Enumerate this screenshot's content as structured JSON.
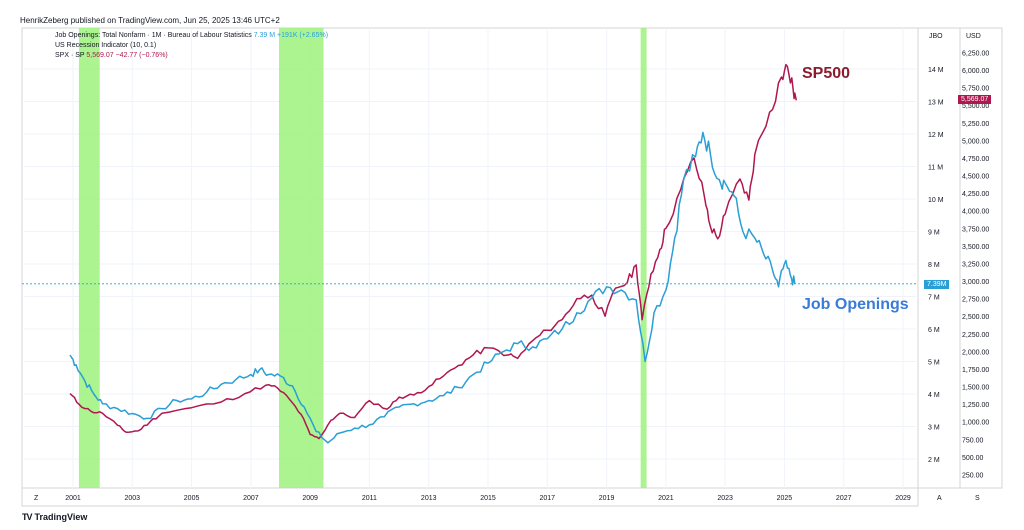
{
  "header": {
    "published": "HenrikZeberg published on TradingView.com, Jun 25, 2025 13:46 UTC+2"
  },
  "legend": {
    "series1_name": "Job Openings: Total Nonfarm · 1M · Bureau of Labour Statistics",
    "series1_value": "7.39 M  +191K (+2.65%)",
    "series2_name": "US Recession Indicator (10, 0.1)",
    "series3_name": "SPX · SP",
    "series3_value": "5,569.07  −42.77 (−0.76%)"
  },
  "annotations": {
    "sp500": "SP500",
    "job_openings": "Job Openings"
  },
  "axes": {
    "left_scale_title": "JBO",
    "right_scale_title": "USD",
    "jbo_badge": "7.39M",
    "spx_badge": "5,569.07",
    "bottom_left": "Z",
    "bottom_mid": "A",
    "bottom_right": "S"
  },
  "footer": {
    "logo": "TV",
    "brand": "TradingView"
  },
  "chart_data": {
    "type": "line",
    "x_ticks": [
      "2001",
      "2003",
      "2005",
      "2007",
      "2009",
      "2011",
      "2013",
      "2015",
      "2017",
      "2019",
      "2021",
      "2023",
      "2025",
      "2027",
      "2029"
    ],
    "jbo_ticks": [
      "2 M",
      "3 M",
      "4 M",
      "5 M",
      "6 M",
      "7 M",
      "8 M",
      "9 M",
      "10 M",
      "11 M",
      "12 M",
      "13 M",
      "14 M"
    ],
    "usd_ticks": [
      "250.00",
      "500.00",
      "750.00",
      "1,000.00",
      "1,250.00",
      "1,500.00",
      "1,750.00",
      "2,000.00",
      "2,250.00",
      "2,500.00",
      "2,750.00",
      "3,000.00",
      "3,250.00",
      "3,500.00",
      "3,750.00",
      "4,000.00",
      "4,250.00",
      "4,500.00",
      "4,750.00",
      "5,000.00",
      "5,250.00",
      "5,500.00",
      "5,750.00",
      "6,000.00",
      "6,250.00"
    ],
    "recessions": [
      [
        2001.2,
        2001.9
      ],
      [
        2007.95,
        2009.45
      ],
      [
        2020.15,
        2020.35
      ]
    ],
    "series": [
      {
        "name": "Job Openings",
        "color": "#2a9fd6",
        "points": [
          [
            2000.9,
            5.2
          ],
          [
            2001.1,
            4.9
          ],
          [
            2001.4,
            4.4
          ],
          [
            2001.7,
            4.0
          ],
          [
            2002.0,
            3.7
          ],
          [
            2002.5,
            3.55
          ],
          [
            2003.0,
            3.4
          ],
          [
            2003.5,
            3.25
          ],
          [
            2004.0,
            3.55
          ],
          [
            2004.5,
            3.8
          ],
          [
            2005.0,
            3.85
          ],
          [
            2005.5,
            4.05
          ],
          [
            2006.0,
            4.3
          ],
          [
            2006.5,
            4.45
          ],
          [
            2007.0,
            4.6
          ],
          [
            2007.3,
            4.75
          ],
          [
            2007.6,
            4.6
          ],
          [
            2008.0,
            4.55
          ],
          [
            2008.4,
            4.25
          ],
          [
            2008.8,
            3.6
          ],
          [
            2009.2,
            2.85
          ],
          [
            2009.6,
            2.5
          ],
          [
            2010.0,
            2.8
          ],
          [
            2010.5,
            2.95
          ],
          [
            2011.0,
            3.05
          ],
          [
            2011.5,
            3.3
          ],
          [
            2012.0,
            3.6
          ],
          [
            2012.5,
            3.7
          ],
          [
            2013.0,
            3.8
          ],
          [
            2013.5,
            3.95
          ],
          [
            2014.0,
            4.2
          ],
          [
            2014.5,
            4.6
          ],
          [
            2015.0,
            4.95
          ],
          [
            2015.5,
            5.3
          ],
          [
            2016.0,
            5.55
          ],
          [
            2016.5,
            5.45
          ],
          [
            2017.0,
            5.7
          ],
          [
            2017.5,
            6.0
          ],
          [
            2018.0,
            6.5
          ],
          [
            2018.5,
            6.95
          ],
          [
            2019.0,
            7.3
          ],
          [
            2019.5,
            7.2
          ],
          [
            2020.0,
            6.9
          ],
          [
            2020.3,
            5.0
          ],
          [
            2020.6,
            6.5
          ],
          [
            2021.0,
            7.2
          ],
          [
            2021.3,
            8.8
          ],
          [
            2021.6,
            10.6
          ],
          [
            2022.0,
            11.3
          ],
          [
            2022.25,
            12.05
          ],
          [
            2022.5,
            11.4
          ],
          [
            2022.8,
            10.6
          ],
          [
            2023.0,
            10.5
          ],
          [
            2023.3,
            10.1
          ],
          [
            2023.6,
            9.0
          ],
          [
            2024.0,
            8.8
          ],
          [
            2024.3,
            8.3
          ],
          [
            2024.6,
            7.8
          ],
          [
            2024.8,
            7.3
          ],
          [
            2025.0,
            8.0
          ],
          [
            2025.2,
            7.65
          ],
          [
            2025.35,
            7.39
          ]
        ]
      },
      {
        "name": "SPX",
        "color": "#b0174f",
        "points": [
          [
            2000.9,
            1400
          ],
          [
            2001.2,
            1250
          ],
          [
            2001.6,
            1150
          ],
          [
            2002.0,
            1120
          ],
          [
            2002.5,
            950
          ],
          [
            2002.8,
            850
          ],
          [
            2003.2,
            870
          ],
          [
            2003.6,
            1000
          ],
          [
            2004.0,
            1120
          ],
          [
            2005.0,
            1200
          ],
          [
            2006.0,
            1280
          ],
          [
            2006.8,
            1400
          ],
          [
            2007.5,
            1520
          ],
          [
            2007.9,
            1480
          ],
          [
            2008.3,
            1320
          ],
          [
            2008.7,
            1100
          ],
          [
            2009.0,
            820
          ],
          [
            2009.3,
            760
          ],
          [
            2009.7,
            1020
          ],
          [
            2010.0,
            1120
          ],
          [
            2010.5,
            1060
          ],
          [
            2011.0,
            1300
          ],
          [
            2011.6,
            1180
          ],
          [
            2012.0,
            1350
          ],
          [
            2012.5,
            1380
          ],
          [
            2013.0,
            1500
          ],
          [
            2013.5,
            1650
          ],
          [
            2014.0,
            1800
          ],
          [
            2014.5,
            1950
          ],
          [
            2015.0,
            2050
          ],
          [
            2015.7,
            1950
          ],
          [
            2016.0,
            1900
          ],
          [
            2016.5,
            2150
          ],
          [
            2017.0,
            2300
          ],
          [
            2017.5,
            2450
          ],
          [
            2018.0,
            2750
          ],
          [
            2018.5,
            2800
          ],
          [
            2018.95,
            2500
          ],
          [
            2019.3,
            2900
          ],
          [
            2019.7,
            2980
          ],
          [
            2020.0,
            3230
          ],
          [
            2020.2,
            2450
          ],
          [
            2020.5,
            3100
          ],
          [
            2020.8,
            3450
          ],
          [
            2021.0,
            3750
          ],
          [
            2021.5,
            4300
          ],
          [
            2021.95,
            4750
          ],
          [
            2022.3,
            4200
          ],
          [
            2022.5,
            3780
          ],
          [
            2022.75,
            3600
          ],
          [
            2023.0,
            3950
          ],
          [
            2023.5,
            4450
          ],
          [
            2023.8,
            4150
          ],
          [
            2024.0,
            4800
          ],
          [
            2024.5,
            5400
          ],
          [
            2024.9,
            5900
          ],
          [
            2025.1,
            6050
          ],
          [
            2025.3,
            5700
          ],
          [
            2025.4,
            5569.07
          ]
        ]
      }
    ],
    "last_jbo": 7.39,
    "last_spx": 5569.07
  }
}
